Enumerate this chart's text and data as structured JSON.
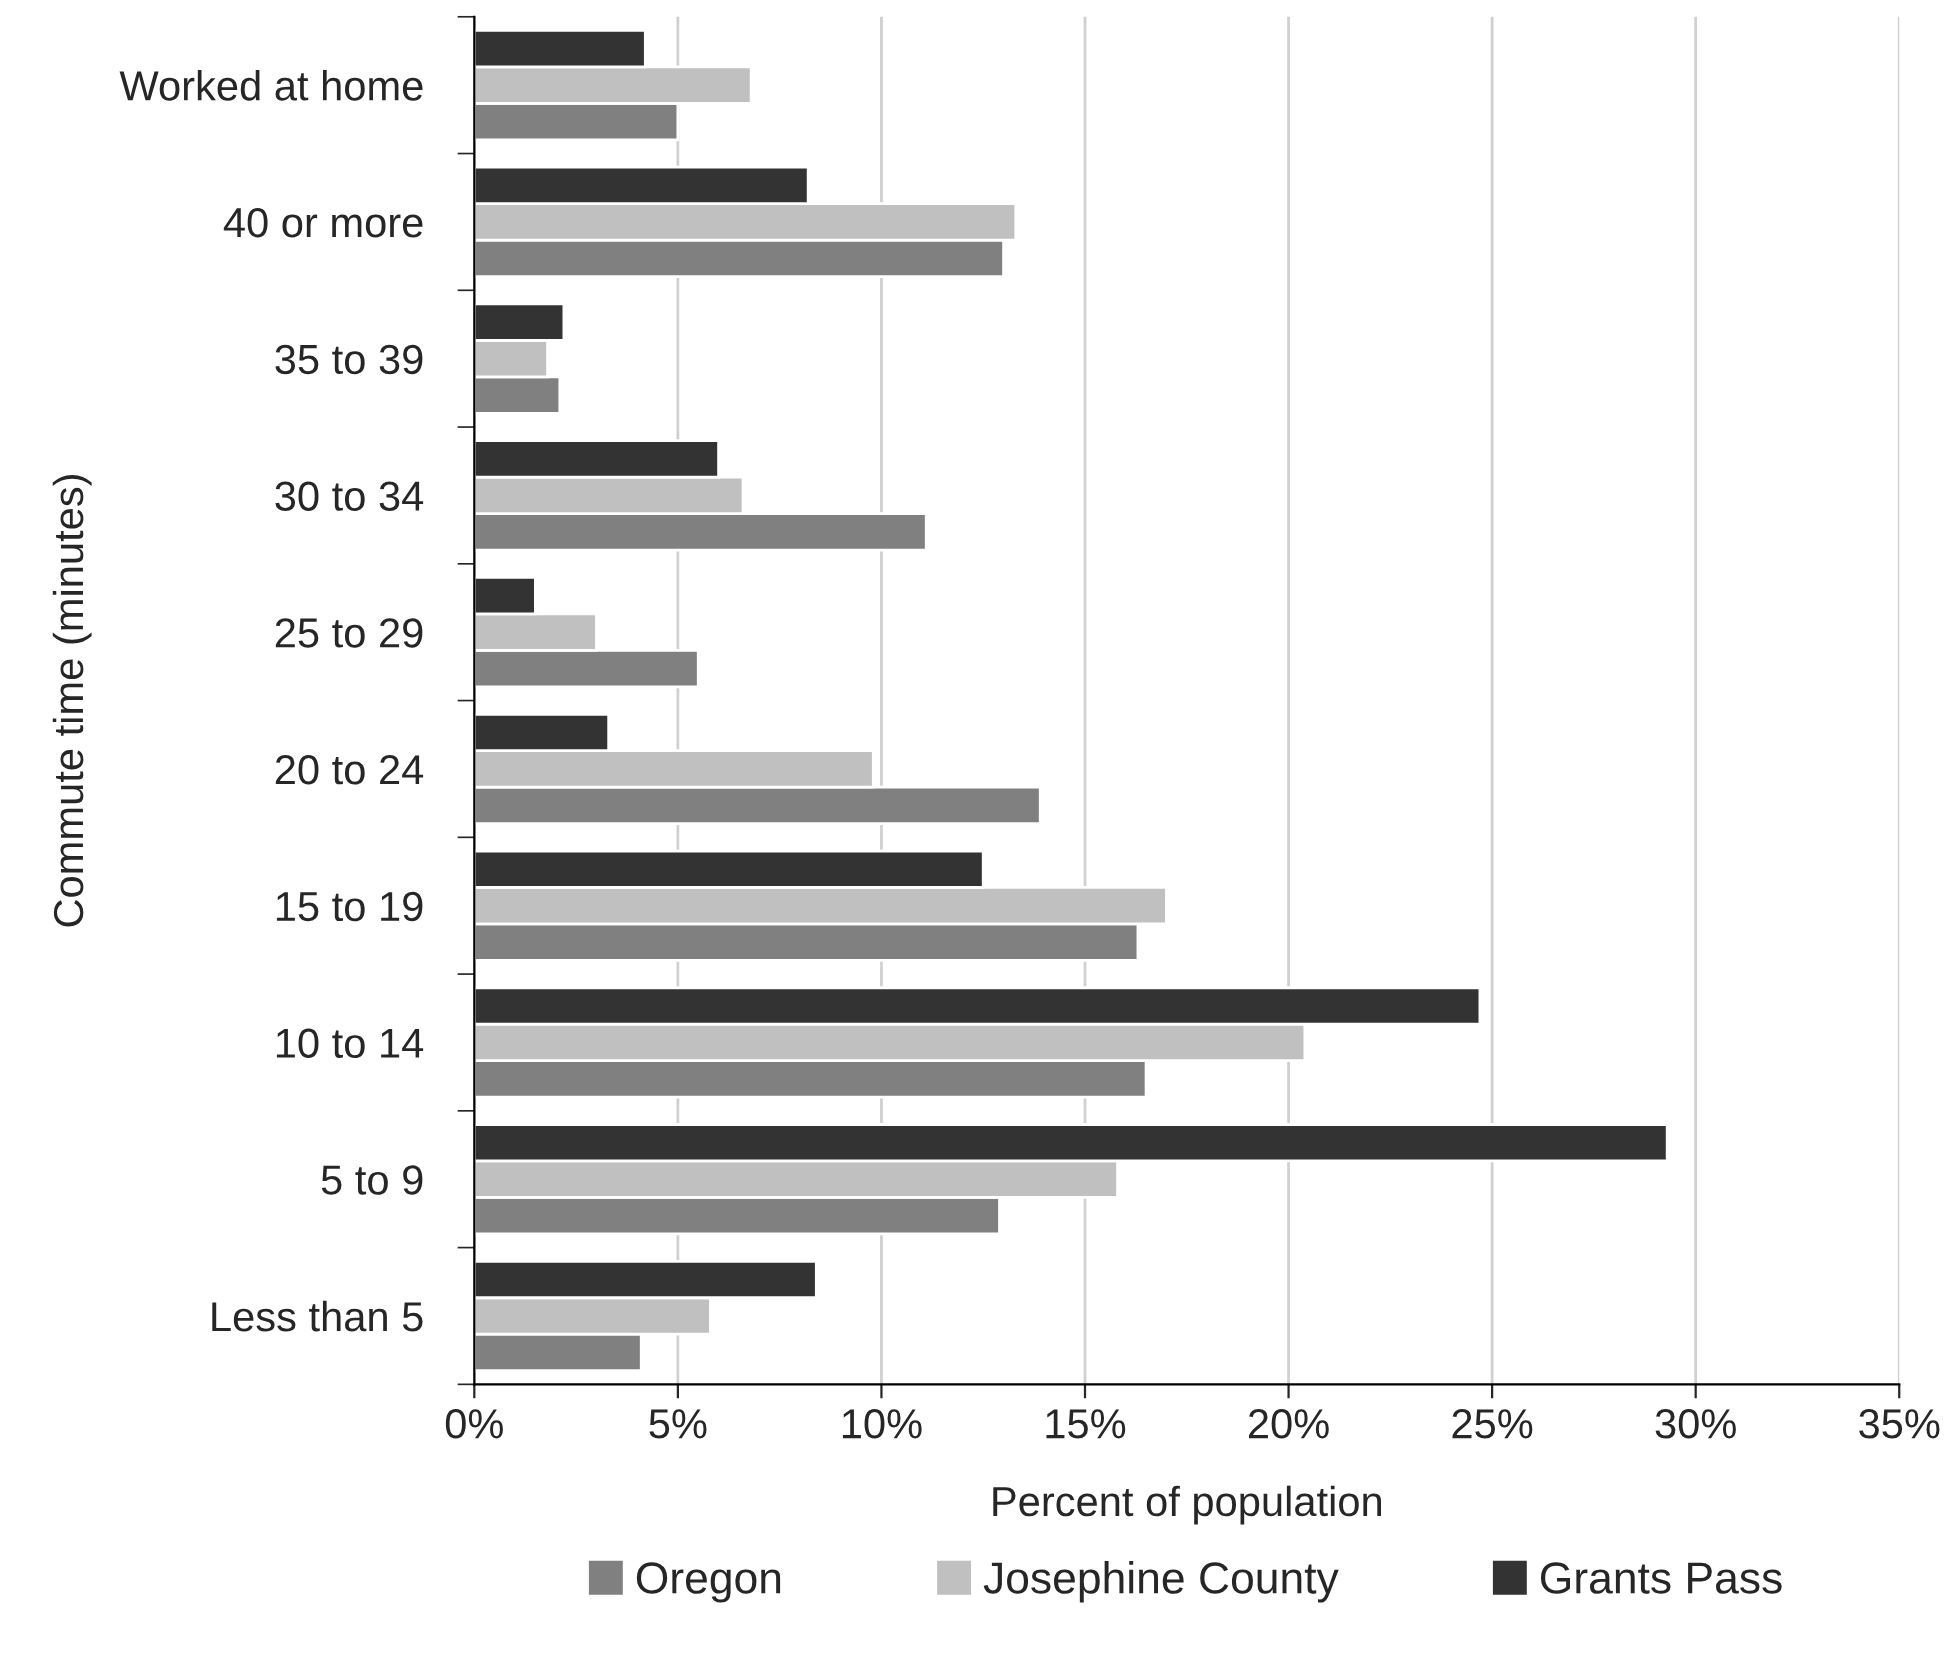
{
  "chart_data": {
    "type": "bar",
    "orientation": "horizontal",
    "xlabel": "Percent of population",
    "ylabel": "Commute time (minutes)",
    "categories": [
      "Worked at home",
      "40 or more",
      "35 to 39",
      "30 to 34",
      "25 to 29",
      "20 to 24",
      "15 to 19",
      "10 to 14",
      "5 to 9",
      "Less than 5"
    ],
    "series": [
      {
        "name": "Oregon",
        "color": "#808080",
        "values": [
          5.0,
          13.0,
          2.1,
          11.1,
          5.5,
          13.9,
          16.3,
          16.5,
          12.9,
          4.1
        ]
      },
      {
        "name": "Josephine County",
        "color": "#c0c0c0",
        "values": [
          6.8,
          13.3,
          1.8,
          6.6,
          3.0,
          9.8,
          17.0,
          20.4,
          15.8,
          5.8
        ]
      },
      {
        "name": "Grants Pass",
        "color": "#333333",
        "values": [
          4.2,
          8.2,
          2.2,
          6.0,
          1.5,
          3.3,
          12.5,
          24.7,
          29.3,
          8.4
        ]
      }
    ],
    "xlim": [
      0,
      35
    ],
    "xticks": [
      {
        "value": 0,
        "label": "0%"
      },
      {
        "value": 5,
        "label": "5%"
      },
      {
        "value": 10,
        "label": "10%"
      },
      {
        "value": 15,
        "label": "15%"
      },
      {
        "value": 20,
        "label": "20%"
      },
      {
        "value": 25,
        "label": "25%"
      },
      {
        "value": 30,
        "label": "30%"
      },
      {
        "value": 35,
        "label": "35%"
      }
    ],
    "grid": "x",
    "legend": "bottom"
  }
}
